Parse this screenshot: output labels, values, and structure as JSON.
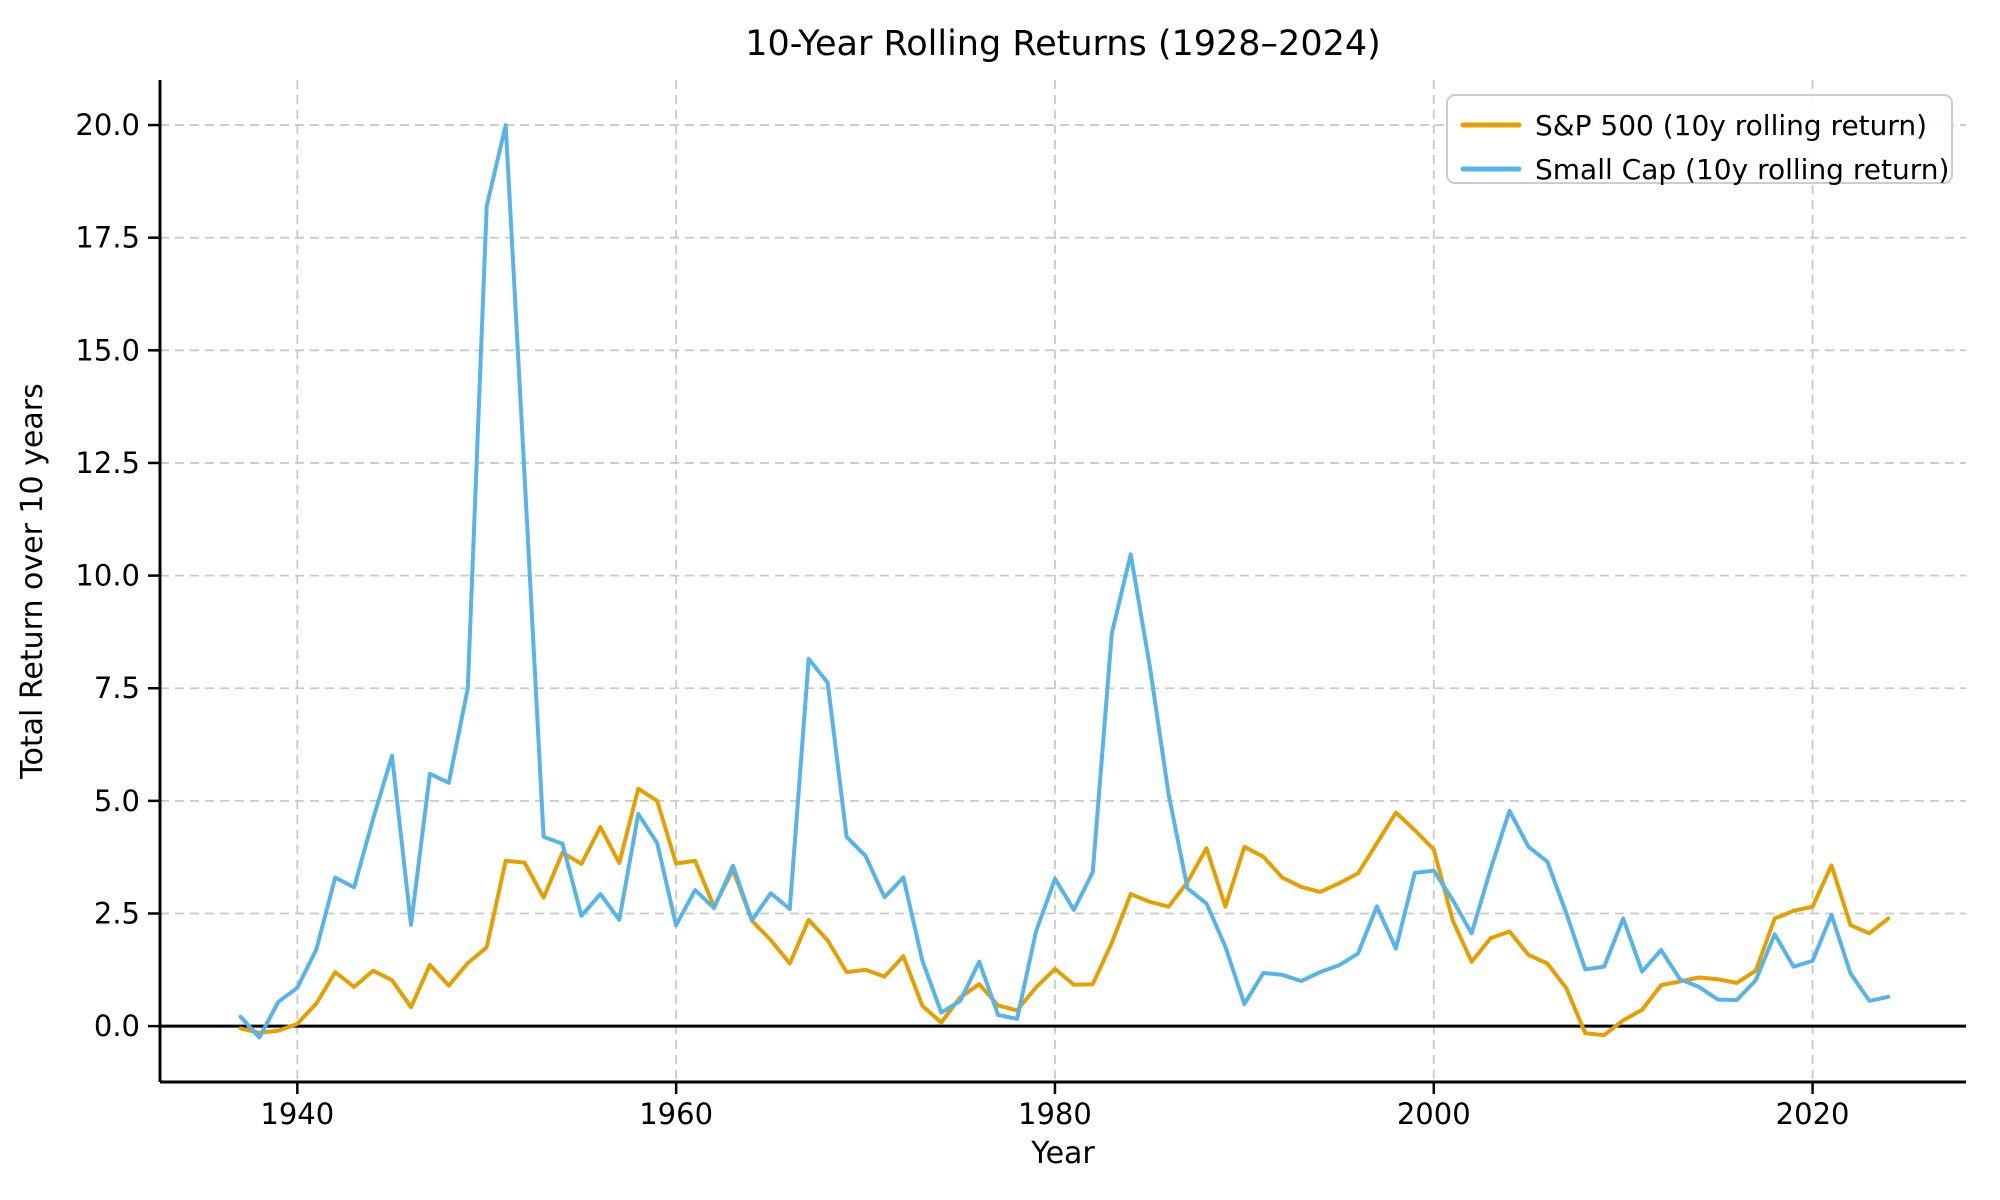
{
  "figure": {
    "background": "#ffffff",
    "grid_color": "#c9c9c9",
    "spine_color": "#000000",
    "zero_line_color": "#000000",
    "legend_border_color": "#cccccc"
  },
  "chart_data": {
    "type": "line",
    "title": "10-Year Rolling Returns (1928–2024)",
    "xlabel": "Year",
    "ylabel": "Total Return over 10 years",
    "grid": true,
    "grid_style": "dashed",
    "zero_line": true,
    "legend_position": "upper right",
    "x_ticks": [
      1940,
      1960,
      1980,
      2000,
      2020
    ],
    "y_ticks": [
      0.0,
      2.5,
      5.0,
      7.5,
      10.0,
      12.5,
      15.0,
      17.5,
      20.0
    ],
    "xlim": [
      1932.75,
      2028.1
    ],
    "ylim": [
      -1.24,
      21.0
    ],
    "x": [
      1937,
      1938,
      1939,
      1940,
      1941,
      1942,
      1943,
      1944,
      1945,
      1946,
      1947,
      1948,
      1949,
      1950,
      1951,
      1952,
      1953,
      1954,
      1955,
      1956,
      1957,
      1958,
      1959,
      1960,
      1961,
      1962,
      1963,
      1964,
      1965,
      1966,
      1967,
      1968,
      1969,
      1970,
      1971,
      1972,
      1973,
      1974,
      1975,
      1976,
      1977,
      1978,
      1979,
      1980,
      1981,
      1982,
      1983,
      1984,
      1985,
      1986,
      1987,
      1988,
      1989,
      1990,
      1991,
      1992,
      1993,
      1994,
      1995,
      1996,
      1997,
      1998,
      1999,
      2000,
      2001,
      2002,
      2003,
      2004,
      2005,
      2006,
      2007,
      2008,
      2009,
      2010,
      2011,
      2012,
      2013,
      2014,
      2015,
      2016,
      2017,
      2018,
      2019,
      2020,
      2021,
      2022,
      2023,
      2024
    ],
    "series": [
      {
        "name": "S&P 500 (10y rolling return)",
        "color": "#e69f00",
        "values": [
          -0.05,
          -0.15,
          -0.1,
          0.05,
          0.5,
          1.2,
          0.87,
          1.23,
          1.02,
          0.42,
          1.36,
          0.9,
          1.4,
          1.75,
          3.67,
          3.63,
          2.85,
          3.85,
          3.6,
          4.42,
          3.62,
          5.27,
          5.0,
          3.61,
          3.67,
          2.65,
          3.47,
          2.34,
          1.91,
          1.39,
          2.36,
          1.9,
          1.2,
          1.25,
          1.1,
          1.55,
          0.45,
          0.08,
          0.64,
          0.93,
          0.46,
          0.35,
          0.86,
          1.27,
          0.92,
          0.93,
          1.85,
          2.93,
          2.76,
          2.65,
          3.2,
          3.95,
          2.65,
          3.98,
          3.76,
          3.3,
          3.09,
          2.98,
          3.17,
          3.39,
          4.06,
          4.74,
          4.35,
          3.92,
          2.35,
          1.43,
          1.95,
          2.1,
          1.58,
          1.39,
          0.84,
          -0.16,
          -0.2,
          0.13,
          0.36,
          0.91,
          0.99,
          1.08,
          1.04,
          0.96,
          1.23,
          2.39,
          2.56,
          2.65,
          3.57,
          2.24,
          2.06,
          2.39
        ]
      },
      {
        "name": "Small Cap (10y rolling return)",
        "color": "#56b4e9",
        "values": [
          0.21,
          -0.25,
          0.54,
          0.85,
          1.7,
          3.3,
          3.08,
          4.6,
          6.0,
          2.25,
          5.6,
          5.4,
          7.5,
          18.2,
          20.0,
          12.2,
          4.2,
          4.05,
          2.45,
          2.93,
          2.36,
          4.71,
          4.06,
          2.24,
          3.02,
          2.62,
          3.56,
          2.35,
          2.95,
          2.6,
          8.15,
          7.62,
          4.2,
          3.78,
          2.86,
          3.3,
          1.45,
          0.3,
          0.56,
          1.43,
          0.25,
          0.16,
          2.1,
          3.27,
          2.58,
          3.42,
          8.72,
          10.47,
          8.0,
          5.15,
          3.06,
          2.72,
          1.76,
          0.49,
          1.18,
          1.14,
          1.0,
          1.2,
          1.35,
          1.61,
          2.66,
          1.72,
          3.4,
          3.45,
          2.8,
          2.06,
          3.48,
          4.78,
          3.98,
          3.65,
          2.5,
          1.26,
          1.32,
          2.39,
          1.21,
          1.69,
          1.04,
          0.87,
          0.59,
          0.58,
          1.02,
          2.04,
          1.32,
          1.45,
          2.47,
          1.17,
          0.56,
          0.65
        ]
      }
    ]
  }
}
